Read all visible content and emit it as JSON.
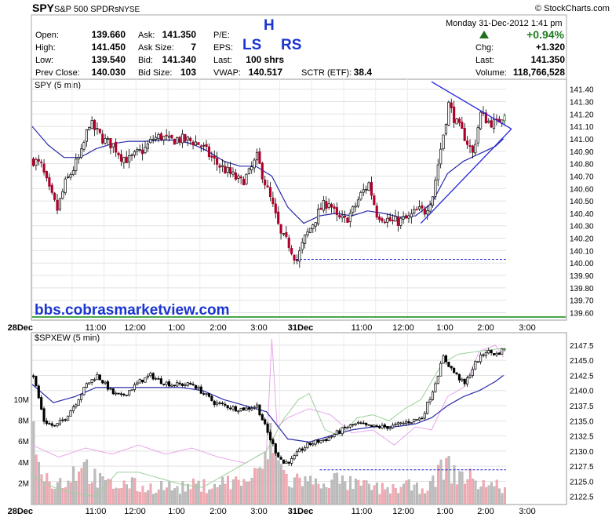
{
  "header": {
    "ticker": "SPY",
    "name": "S&P 500 SPDRs",
    "exchange": "NYSE",
    "copyright": "© StockCharts.com",
    "datetime": "Monday  31-Dec-2012  1:41 pm",
    "change_pct": "+0.94%",
    "quote_labels": [
      "Open:",
      "High:",
      "Low:",
      "Prev Close:",
      "Ask:",
      "Ask Size:",
      "Bid:",
      "Bid Size:",
      "P/E:",
      "EPS:",
      "Last:",
      "VWAP:",
      "SCTR (ETF):",
      "Chg:",
      "Last:",
      "Volume:"
    ],
    "quote_values": [
      "139.660",
      "141.450",
      "139.540",
      "140.030",
      "141.350",
      "7",
      "141.340",
      "103",
      "100 shrs",
      "140.517",
      "38.4",
      "+1.320",
      "141.350",
      "118,766,528"
    ]
  },
  "annotations": {
    "h": "H",
    "ls": "LS",
    "rs": "RS",
    "watermark": "bbs.cobrasmarketview.com"
  },
  "colors": {
    "up": "#ffffff",
    "down": "#b0002a",
    "ma": "#2a2aa8",
    "trendline": "#2222dd",
    "reference": "#2222cc",
    "green_bar": "#0a8a0a",
    "volume_up": "#bdbdbd",
    "volume_down": "#f2aab6"
  },
  "chart_data": [
    {
      "type": "candlestick",
      "title": "SPY (5 min)",
      "x_tick_labels": [
        "28Dec",
        "11:00",
        "12:00",
        "1:00",
        "2:00",
        "3:00",
        "31Dec",
        "11:00",
        "12:00",
        "1:00",
        "2:00",
        "3:00"
      ],
      "y_tick_labels": [
        "141.40",
        "141.30",
        "141.20",
        "141.10",
        "141.00",
        "140.90",
        "140.80",
        "140.70",
        "140.60",
        "140.50",
        "140.40",
        "140.30",
        "140.20",
        "140.10",
        "140.00",
        "139.90",
        "139.80",
        "139.70",
        "139.60"
      ],
      "ylim": [
        139.54,
        141.48
      ],
      "reference_line": 140.03,
      "close_path": [
        [
          0,
          140.83
        ],
        [
          3,
          140.78
        ],
        [
          6,
          140.58
        ],
        [
          9,
          140.43
        ],
        [
          12,
          140.64
        ],
        [
          15,
          140.76
        ],
        [
          18,
          140.88
        ],
        [
          21,
          141.13
        ],
        [
          24,
          141.05
        ],
        [
          27,
          140.98
        ],
        [
          30,
          140.95
        ],
        [
          33,
          140.86
        ],
        [
          36,
          140.83
        ],
        [
          39,
          140.88
        ],
        [
          42,
          140.92
        ],
        [
          45,
          141.0
        ],
        [
          48,
          141.02
        ],
        [
          51,
          140.98
        ],
        [
          54,
          141.0
        ],
        [
          57,
          140.99
        ],
        [
          60,
          140.98
        ],
        [
          63,
          140.95
        ],
        [
          66,
          140.87
        ],
        [
          69,
          140.8
        ],
        [
          72,
          140.75
        ],
        [
          75,
          140.7
        ],
        [
          78,
          140.65
        ],
        [
          81,
          140.72
        ],
        [
          84,
          140.85
        ],
        [
          87,
          140.65
        ],
        [
          90,
          140.45
        ],
        [
          93,
          140.22
        ],
        [
          96,
          140.15
        ],
        [
          99,
          140.02
        ],
        [
          102,
          140.2
        ],
        [
          105,
          140.32
        ],
        [
          108,
          140.44
        ],
        [
          111,
          140.5
        ],
        [
          114,
          140.36
        ],
        [
          117,
          140.34
        ],
        [
          120,
          140.42
        ],
        [
          123,
          140.55
        ],
        [
          126,
          140.64
        ],
        [
          129,
          140.4
        ],
        [
          132,
          140.36
        ],
        [
          135,
          140.33
        ],
        [
          138,
          140.34
        ],
        [
          141,
          140.36
        ],
        [
          144,
          140.42
        ],
        [
          147,
          140.42
        ],
        [
          150,
          140.55
        ],
        [
          153,
          140.92
        ],
        [
          156,
          141.28
        ],
        [
          159,
          141.12
        ],
        [
          162,
          141.02
        ],
        [
          165,
          140.88
        ],
        [
          168,
          141.2
        ],
        [
          171,
          141.14
        ],
        [
          174,
          141.12
        ],
        [
          177,
          141.22
        ]
      ],
      "moving_average": [
        [
          0,
          141.1
        ],
        [
          6,
          140.95
        ],
        [
          12,
          140.85
        ],
        [
          18,
          140.85
        ],
        [
          24,
          140.92
        ],
        [
          30,
          140.96
        ],
        [
          36,
          140.98
        ],
        [
          42,
          140.98
        ],
        [
          48,
          140.99
        ],
        [
          54,
          140.99
        ],
        [
          60,
          140.96
        ],
        [
          66,
          140.9
        ],
        [
          72,
          140.82
        ],
        [
          78,
          140.78
        ],
        [
          84,
          140.78
        ],
        [
          90,
          140.7
        ],
        [
          96,
          140.45
        ],
        [
          102,
          140.32
        ],
        [
          108,
          140.38
        ],
        [
          114,
          140.4
        ],
        [
          120,
          140.38
        ],
        [
          126,
          140.42
        ],
        [
          132,
          140.4
        ],
        [
          138,
          140.37
        ],
        [
          144,
          140.38
        ],
        [
          150,
          140.48
        ],
        [
          156,
          140.72
        ],
        [
          162,
          140.82
        ],
        [
          168,
          140.88
        ],
        [
          174,
          140.94
        ],
        [
          177,
          141.0
        ]
      ],
      "trendlines": [
        [
          [
            150,
            141.46
          ],
          [
            180,
            141.08
          ]
        ],
        [
          [
            146,
            140.32
          ],
          [
            180,
            141.08
          ]
        ]
      ]
    },
    {
      "type": "candlestick",
      "title": "$SPXEW (5 min)",
      "x_tick_labels": [
        "28Dec",
        "11:00",
        "12:00",
        "1:00",
        "2:00",
        "3:00",
        "31Dec",
        "11:00",
        "12:00",
        "1:00",
        "2:00",
        "3:00"
      ],
      "y_tick_labels": [
        "2147.5",
        "2145.0",
        "2142.5",
        "2140.0",
        "2137.5",
        "2135.0",
        "2132.5",
        "2130.0",
        "2127.5",
        "2125.0",
        "2122.5"
      ],
      "volume_tick_labels": [
        "10M",
        "8M",
        "6M",
        "4M",
        "2M"
      ],
      "ylim": [
        2121.3,
        2149.3
      ],
      "reference_line": 2126.9,
      "close_path": [
        [
          0,
          2142.5
        ],
        [
          4,
          2135.0
        ],
        [
          8,
          2134.0
        ],
        [
          12,
          2135.5
        ],
        [
          16,
          2138.0
        ],
        [
          20,
          2141.0
        ],
        [
          24,
          2142.5
        ],
        [
          27,
          2141.0
        ],
        [
          30,
          2139.5
        ],
        [
          33,
          2139.0
        ],
        [
          36,
          2140.0
        ],
        [
          40,
          2141.5
        ],
        [
          44,
          2142.5
        ],
        [
          48,
          2141.5
        ],
        [
          52,
          2141.0
        ],
        [
          56,
          2141.0
        ],
        [
          60,
          2141.0
        ],
        [
          64,
          2139.5
        ],
        [
          68,
          2138.0
        ],
        [
          72,
          2137.5
        ],
        [
          76,
          2137.0
        ],
        [
          80,
          2137.0
        ],
        [
          84,
          2137.5
        ],
        [
          88,
          2133.0
        ],
        [
          91,
          2130.0
        ],
        [
          94,
          2128.0
        ],
        [
          97,
          2128.5
        ],
        [
          100,
          2130.0
        ],
        [
          103,
          2131.0
        ],
        [
          106,
          2131.5
        ],
        [
          110,
          2132.0
        ],
        [
          114,
          2133.0
        ],
        [
          118,
          2134.0
        ],
        [
          122,
          2134.5
        ],
        [
          126,
          2134.0
        ],
        [
          130,
          2134.0
        ],
        [
          134,
          2134.0
        ],
        [
          138,
          2134.5
        ],
        [
          142,
          2135.0
        ],
        [
          146,
          2135.5
        ],
        [
          150,
          2140.0
        ],
        [
          154,
          2145.5
        ],
        [
          158,
          2143.0
        ],
        [
          162,
          2141.0
        ],
        [
          166,
          2144.5
        ],
        [
          170,
          2146.5
        ],
        [
          174,
          2146.0
        ],
        [
          177,
          2147.0
        ]
      ],
      "moving_average": [
        [
          0,
          2141.0
        ],
        [
          8,
          2138.0
        ],
        [
          16,
          2139.0
        ],
        [
          24,
          2140.5
        ],
        [
          32,
          2140.5
        ],
        [
          40,
          2140.5
        ],
        [
          48,
          2140.5
        ],
        [
          56,
          2140.5
        ],
        [
          64,
          2140.0
        ],
        [
          72,
          2138.5
        ],
        [
          80,
          2137.5
        ],
        [
          88,
          2136.5
        ],
        [
          96,
          2132.0
        ],
        [
          104,
          2131.5
        ],
        [
          112,
          2132.5
        ],
        [
          120,
          2133.5
        ],
        [
          128,
          2134.0
        ],
        [
          136,
          2134.0
        ],
        [
          144,
          2134.5
        ],
        [
          150,
          2135.5
        ],
        [
          156,
          2137.5
        ],
        [
          162,
          2139.0
        ],
        [
          168,
          2140.0
        ],
        [
          174,
          2141.5
        ],
        [
          177,
          2142.5
        ]
      ],
      "volume_profile": [
        [
          0,
          7.0
        ],
        [
          6,
          2.0
        ],
        [
          12,
          2.2
        ],
        [
          18,
          4.2
        ],
        [
          24,
          2.3
        ],
        [
          30,
          1.8
        ],
        [
          36,
          2.0
        ],
        [
          42,
          1.5
        ],
        [
          48,
          1.8
        ],
        [
          54,
          1.5
        ],
        [
          60,
          1.8
        ],
        [
          66,
          1.8
        ],
        [
          72,
          2.2
        ],
        [
          78,
          2.2
        ],
        [
          84,
          2.8
        ],
        [
          88,
          5.0
        ],
        [
          90,
          7.0
        ],
        [
          92,
          4.0
        ],
        [
          96,
          2.2
        ],
        [
          100,
          2.5
        ],
        [
          106,
          2.0
        ],
        [
          112,
          2.5
        ],
        [
          118,
          2.0
        ],
        [
          124,
          1.8
        ],
        [
          130,
          1.5
        ],
        [
          136,
          1.5
        ],
        [
          140,
          1.8
        ],
        [
          144,
          1.5
        ],
        [
          150,
          2.0
        ],
        [
          154,
          4.0
        ],
        [
          158,
          3.0
        ],
        [
          162,
          2.8
        ],
        [
          168,
          2.0
        ],
        [
          174,
          1.8
        ],
        [
          177,
          1.5
        ]
      ],
      "indicator_pink": [
        [
          0,
          2131.0
        ],
        [
          10,
          2129.0
        ],
        [
          20,
          2130.5
        ],
        [
          30,
          2129.5
        ],
        [
          40,
          2131.0
        ],
        [
          50,
          2129.5
        ],
        [
          60,
          2130.5
        ],
        [
          70,
          2129.0
        ],
        [
          80,
          2128.0
        ],
        [
          88,
          2130.0
        ],
        [
          90,
          2148.5
        ],
        [
          92,
          2134.0
        ],
        [
          96,
          2135.5
        ],
        [
          104,
          2137.0
        ],
        [
          112,
          2136.0
        ],
        [
          120,
          2133.0
        ],
        [
          128,
          2133.5
        ],
        [
          136,
          2131.0
        ],
        [
          144,
          2134.0
        ],
        [
          150,
          2133.5
        ],
        [
          156,
          2139.0
        ],
        [
          162,
          2140.5
        ],
        [
          168,
          2146.5
        ],
        [
          174,
          2147.5
        ],
        [
          177,
          2145.5
        ]
      ],
      "indicator_green": [
        [
          0,
          2126.0
        ],
        [
          8,
          2124.0
        ],
        [
          16,
          2123.0
        ],
        [
          24,
          2122.5
        ],
        [
          32,
          2126.5
        ],
        [
          40,
          2126.5
        ],
        [
          48,
          2125.5
        ],
        [
          56,
          2124.5
        ],
        [
          64,
          2124.0
        ],
        [
          72,
          2126.0
        ],
        [
          80,
          2128.0
        ],
        [
          88,
          2130.0
        ],
        [
          94,
          2135.0
        ],
        [
          100,
          2138.5
        ],
        [
          104,
          2139.5
        ],
        [
          110,
          2133.5
        ],
        [
          116,
          2132.5
        ],
        [
          122,
          2135.5
        ],
        [
          128,
          2136.0
        ],
        [
          134,
          2135.0
        ],
        [
          140,
          2137.0
        ],
        [
          146,
          2138.5
        ],
        [
          150,
          2141.5
        ],
        [
          154,
          2144.5
        ],
        [
          160,
          2146.0
        ],
        [
          168,
          2146.5
        ],
        [
          177,
          2147.0
        ]
      ]
    }
  ]
}
